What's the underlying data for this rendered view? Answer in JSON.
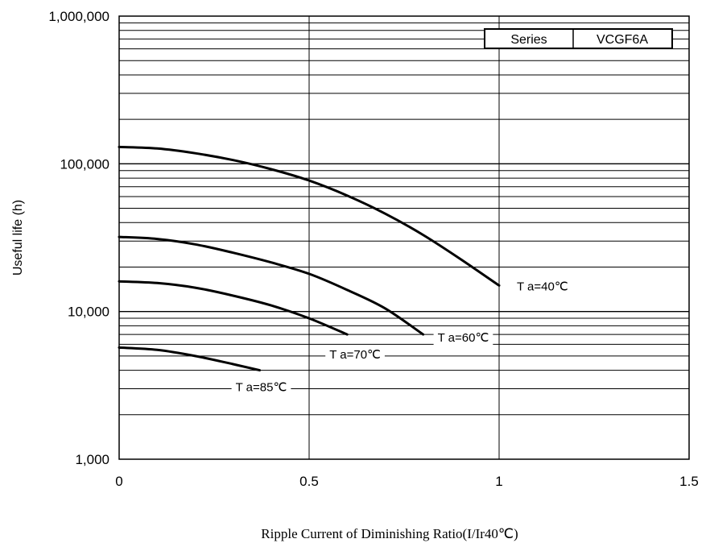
{
  "chart_data": {
    "type": "line",
    "title": "",
    "xlabel": "Ripple Current of Diminishing Ratio(I/Ir40℃)",
    "ylabel": "Useful life (h)",
    "xlim": [
      0,
      1.5
    ],
    "ylim": [
      1000,
      1000000
    ],
    "y_scale": "log",
    "grid": true,
    "legend_position": "top-right",
    "legend": {
      "key": "Series",
      "value": "VCGF6A"
    },
    "x_ticks": [
      {
        "value": 0,
        "label": "0"
      },
      {
        "value": 0.5,
        "label": "0.5"
      },
      {
        "value": 1,
        "label": "1"
      },
      {
        "value": 1.5,
        "label": "1.5"
      }
    ],
    "y_ticks": [
      {
        "value": 1000,
        "label": "1,000"
      },
      {
        "value": 10000,
        "label": "10,000"
      },
      {
        "value": 100000,
        "label": "100,000"
      },
      {
        "value": 1000000,
        "label": "1,000,000"
      }
    ],
    "series": [
      {
        "name": "T a=40℃",
        "x": [
          0,
          0.1,
          0.2,
          0.3,
          0.4,
          0.5,
          0.6,
          0.7,
          0.8,
          0.9,
          1.0
        ],
        "y": [
          130000,
          127000,
          118000,
          106000,
          92000,
          77000,
          61000,
          46000,
          33000,
          22500,
          15000
        ]
      },
      {
        "name": "T a=60℃",
        "x": [
          0,
          0.1,
          0.2,
          0.3,
          0.4,
          0.5,
          0.6,
          0.7,
          0.8
        ],
        "y": [
          32000,
          31000,
          28500,
          25000,
          21500,
          18000,
          14000,
          10500,
          7000
        ]
      },
      {
        "name": "T a=70℃",
        "x": [
          0,
          0.1,
          0.2,
          0.3,
          0.4,
          0.5,
          0.6
        ],
        "y": [
          16000,
          15600,
          14500,
          12800,
          11000,
          9000,
          7000
        ]
      },
      {
        "name": "T a=85℃",
        "x": [
          0,
          0.1,
          0.2,
          0.3,
          0.37
        ],
        "y": [
          5700,
          5500,
          5000,
          4400,
          4000
        ]
      }
    ]
  }
}
